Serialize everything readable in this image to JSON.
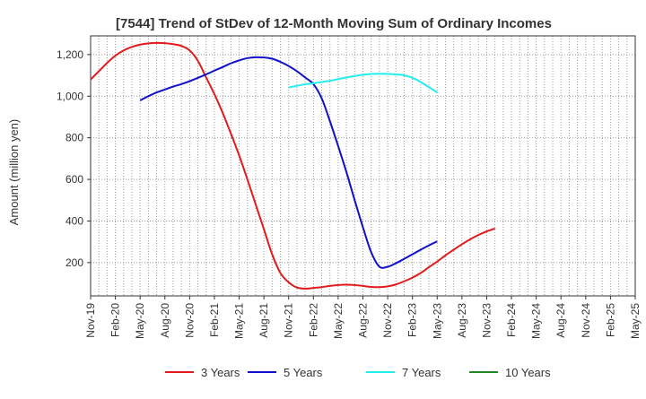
{
  "chart_data": {
    "type": "line",
    "title": "[7544]  Trend of StDev of 12-Month Moving Sum of Ordinary Incomes",
    "ylabel": "Amount (million yen)",
    "xlabel": "",
    "x_tick_labels": [
      "Nov-19",
      "Feb-20",
      "May-20",
      "Aug-20",
      "Nov-20",
      "Feb-21",
      "May-21",
      "Aug-21",
      "Nov-21",
      "Feb-22",
      "May-22",
      "Aug-22",
      "Nov-22",
      "Feb-23",
      "May-23",
      "Aug-23",
      "Nov-23",
      "Feb-24",
      "May-24",
      "Aug-24",
      "Nov-24",
      "Feb-25",
      "May-25"
    ],
    "y_ticks": [
      200,
      400,
      600,
      800,
      1000,
      1200
    ],
    "y_tick_labels": [
      "200",
      "400",
      "600",
      "800",
      "1,000",
      "1,200"
    ],
    "ylim": [
      40,
      1290
    ],
    "grid": true,
    "legend_position": "bottom",
    "series": [
      {
        "name": "3 Years",
        "color": "#e31a1c",
        "values": [
          [
            0,
            1080
          ],
          [
            1,
            1120
          ],
          [
            2,
            1160
          ],
          [
            3,
            1195
          ],
          [
            4,
            1220
          ],
          [
            5,
            1237
          ],
          [
            6,
            1248
          ],
          [
            7,
            1254
          ],
          [
            8,
            1256
          ],
          [
            9,
            1255
          ],
          [
            10,
            1250
          ],
          [
            11,
            1242
          ],
          [
            12,
            1220
          ],
          [
            13,
            1170
          ],
          [
            14,
            1090
          ],
          [
            15,
            1010
          ],
          [
            16,
            920
          ],
          [
            17,
            820
          ],
          [
            18,
            715
          ],
          [
            19,
            600
          ],
          [
            20,
            480
          ],
          [
            21,
            360
          ],
          [
            22,
            240
          ],
          [
            23,
            150
          ],
          [
            24,
            105
          ],
          [
            25,
            80
          ],
          [
            26,
            75
          ],
          [
            27,
            78
          ],
          [
            28,
            82
          ],
          [
            29,
            88
          ],
          [
            30,
            92
          ],
          [
            31,
            94
          ],
          [
            32,
            92
          ],
          [
            33,
            88
          ],
          [
            34,
            83
          ],
          [
            35,
            82
          ],
          [
            36,
            86
          ],
          [
            37,
            95
          ],
          [
            38,
            110
          ],
          [
            39,
            128
          ],
          [
            40,
            150
          ],
          [
            41,
            178
          ],
          [
            42,
            205
          ],
          [
            43,
            235
          ],
          [
            44,
            262
          ],
          [
            45,
            288
          ],
          [
            46,
            312
          ],
          [
            47,
            333
          ],
          [
            48,
            350
          ],
          [
            49,
            364
          ]
        ]
      },
      {
        "name": "5 Years",
        "color": "#1010cc",
        "values": [
          [
            6,
            980
          ],
          [
            7,
            1000
          ],
          [
            8,
            1018
          ],
          [
            9,
            1032
          ],
          [
            10,
            1046
          ],
          [
            11,
            1058
          ],
          [
            12,
            1072
          ],
          [
            13,
            1088
          ],
          [
            14,
            1105
          ],
          [
            15,
            1123
          ],
          [
            16,
            1140
          ],
          [
            17,
            1158
          ],
          [
            18,
            1172
          ],
          [
            19,
            1183
          ],
          [
            20,
            1187
          ],
          [
            21,
            1186
          ],
          [
            22,
            1180
          ],
          [
            23,
            1165
          ],
          [
            24,
            1145
          ],
          [
            25,
            1120
          ],
          [
            26,
            1090
          ],
          [
            27,
            1058
          ],
          [
            28,
            990
          ],
          [
            29,
            880
          ],
          [
            30,
            760
          ],
          [
            31,
            635
          ],
          [
            32,
            500
          ],
          [
            33,
            370
          ],
          [
            34,
            250
          ],
          [
            35,
            180
          ],
          [
            36,
            180
          ],
          [
            37,
            197
          ],
          [
            38,
            218
          ],
          [
            39,
            240
          ],
          [
            40,
            262
          ],
          [
            41,
            283
          ],
          [
            42,
            302
          ]
        ]
      },
      {
        "name": "7 Years",
        "color": "#22eeee",
        "values": [
          [
            24,
            1042
          ],
          [
            25,
            1050
          ],
          [
            26,
            1057
          ],
          [
            27,
            1062
          ],
          [
            28,
            1068
          ],
          [
            29,
            1074
          ],
          [
            30,
            1082
          ],
          [
            31,
            1090
          ],
          [
            32,
            1097
          ],
          [
            33,
            1103
          ],
          [
            34,
            1107
          ],
          [
            35,
            1108
          ],
          [
            36,
            1107
          ],
          [
            37,
            1105
          ],
          [
            38,
            1100
          ],
          [
            39,
            1088
          ],
          [
            40,
            1068
          ],
          [
            41,
            1043
          ],
          [
            42,
            1018
          ]
        ]
      },
      {
        "name": "10 Years",
        "color": "#228822",
        "values": []
      }
    ]
  }
}
